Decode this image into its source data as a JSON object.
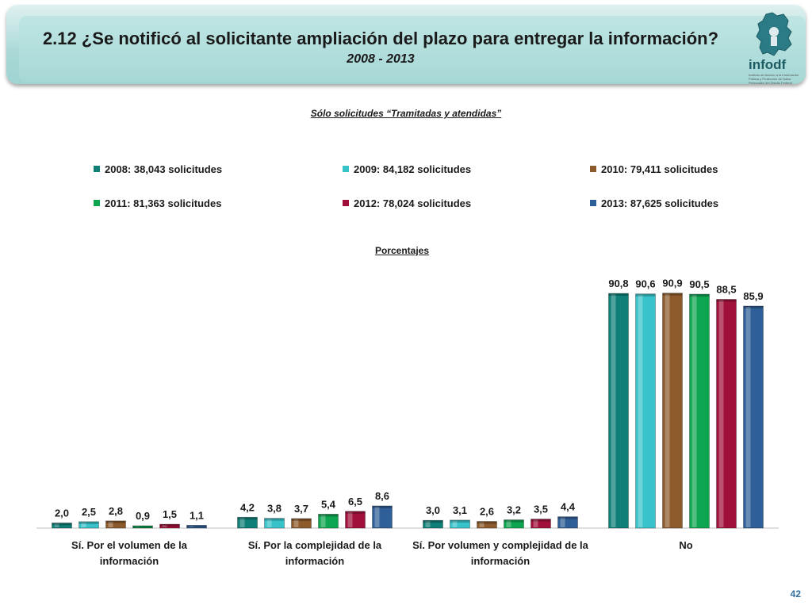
{
  "header": {
    "title": "2.12 ¿Se notificó al solicitante ampliación del plazo para entregar la información?",
    "subtitle": "2008 - 2013",
    "logo_text": "infodf",
    "logo_subtext": "Instituto de Acceso a la Información Pública y Protección de Datos Personales del Distrito Federal"
  },
  "note": "Sólo solicitudes “Tramitadas y atendidas”",
  "page_number": "42",
  "chart_data": {
    "type": "bar",
    "title": "Porcentajes",
    "categories": [
      [
        "Sí. Por el volumen de la",
        "información"
      ],
      [
        "Sí. Por la complejidad de la",
        "información"
      ],
      [
        "Sí. Por volumen y complejidad de la",
        "información"
      ],
      [
        "No"
      ]
    ],
    "series": [
      {
        "name": "2008: 38,043 solicitudes",
        "color": "#0f7f78",
        "values": [
          2.0,
          4.2,
          3.0,
          90.8
        ],
        "labels": [
          "2,0",
          "4,2",
          "3,0",
          "90,8"
        ]
      },
      {
        "name": "2009: 84,182 solicitudes",
        "color": "#37c3c9",
        "values": [
          2.5,
          3.8,
          3.1,
          90.6
        ],
        "labels": [
          "2,5",
          "3,8",
          "3,1",
          "90,6"
        ]
      },
      {
        "name": "2010: 79,411 solicitudes",
        "color": "#8d5a2b",
        "values": [
          2.8,
          3.7,
          2.6,
          90.9
        ],
        "labels": [
          "2,8",
          "3,7",
          "2,6",
          "90,9"
        ]
      },
      {
        "name": "2011: 81,363 solicitudes",
        "color": "#0ea550",
        "values": [
          0.9,
          5.4,
          3.2,
          90.5
        ],
        "labels": [
          "0,9",
          "5,4",
          "3,2",
          "90,5"
        ]
      },
      {
        "name": "2012: 78,024 solicitudes",
        "color": "#a0103a",
        "values": [
          1.5,
          6.5,
          3.5,
          88.5
        ],
        "labels": [
          "1,5",
          "6,5",
          "3,5",
          "88,5"
        ]
      },
      {
        "name": "2013: 87,625 solicitudes",
        "color": "#2f5f98",
        "values": [
          1.1,
          8.6,
          4.4,
          85.9
        ],
        "labels": [
          "1,1",
          "8,6",
          "4,4",
          "85,9"
        ]
      }
    ],
    "ylim": [
      0,
      100
    ],
    "grid": false,
    "legend_position": "top"
  }
}
